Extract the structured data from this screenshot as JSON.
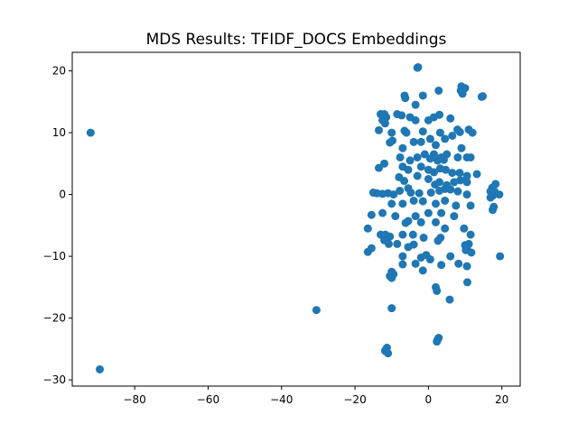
{
  "chart_data": {
    "type": "scatter",
    "title": "MDS Results: TFIDF_DOCS Embeddings",
    "xlabel": "",
    "ylabel": "",
    "xlim": [
      -97,
      25
    ],
    "ylim": [
      -31,
      23
    ],
    "xticks": [
      -80,
      -60,
      -40,
      -20,
      0,
      20
    ],
    "yticks": [
      -30,
      -20,
      -10,
      0,
      10,
      20
    ],
    "xtick_labels": [
      "−80",
      "−60",
      "−40",
      "−20",
      "0",
      "20"
    ],
    "ytick_labels": [
      "−30",
      "−20",
      "−10",
      "0",
      "10",
      "20"
    ],
    "grid": false,
    "marker_color": "#1f77b4",
    "series": [
      {
        "points": [
          [
            -92,
            10
          ],
          [
            -89.5,
            -28.3
          ],
          [
            -30.5,
            -18.7
          ],
          [
            -3,
            20.5
          ],
          [
            -2.8,
            20.6
          ],
          [
            9,
            17.5
          ],
          [
            9.5,
            17
          ],
          [
            8.8,
            16.8
          ],
          [
            9.3,
            16.3
          ],
          [
            10,
            17.2
          ],
          [
            14.5,
            15.8
          ],
          [
            14.8,
            15.9
          ],
          [
            2.8,
            16.8
          ],
          [
            -1.5,
            16
          ],
          [
            -6.5,
            16
          ],
          [
            -6.3,
            15.6
          ],
          [
            -3.5,
            14.5
          ],
          [
            -12,
            13
          ],
          [
            -11.5,
            12.5
          ],
          [
            -12.5,
            12
          ],
          [
            -11.8,
            11.5
          ],
          [
            -12,
            12.3
          ],
          [
            -13,
            13
          ],
          [
            -8.5,
            13
          ],
          [
            -7.3,
            12.8
          ],
          [
            -5,
            12.5
          ],
          [
            -3.5,
            12
          ],
          [
            0,
            12
          ],
          [
            1.5,
            12.5
          ],
          [
            3,
            12.9
          ],
          [
            6,
            12.3
          ],
          [
            -13.5,
            10.4
          ],
          [
            -10,
            10
          ],
          [
            -6.5,
            10.3
          ],
          [
            -6,
            10
          ],
          [
            -1.5,
            10.2
          ],
          [
            3.2,
            10
          ],
          [
            7.9,
            10.5
          ],
          [
            8.6,
            10.1
          ],
          [
            11,
            10.5
          ],
          [
            12,
            10
          ],
          [
            -10.5,
            8.4
          ],
          [
            -9.8,
            8.7
          ],
          [
            -7,
            7.5
          ],
          [
            -4,
            8.5
          ],
          [
            -2,
            8.5
          ],
          [
            0.5,
            9
          ],
          [
            2,
            8
          ],
          [
            4.5,
            9
          ],
          [
            6.5,
            9.5
          ],
          [
            9,
            7.5
          ],
          [
            -7.7,
            6
          ],
          [
            -5,
            5.5
          ],
          [
            -3,
            6
          ],
          [
            -1,
            6.5
          ],
          [
            0.5,
            5.8
          ],
          [
            1.5,
            6.5
          ],
          [
            2.5,
            5.5
          ],
          [
            3.5,
            6
          ],
          [
            4.2,
            5.6
          ],
          [
            5,
            6.5
          ],
          [
            8,
            6
          ],
          [
            10.5,
            6
          ],
          [
            11.5,
            6
          ],
          [
            -12,
            5
          ],
          [
            -7,
            4.5
          ],
          [
            -5.5,
            4
          ],
          [
            -2,
            4.5
          ],
          [
            0,
            4
          ],
          [
            1.5,
            3.6
          ],
          [
            3.2,
            4.2
          ],
          [
            4.7,
            4
          ],
          [
            6.5,
            3.5
          ],
          [
            8.5,
            3.5
          ],
          [
            10.5,
            3
          ],
          [
            13.2,
            3.3
          ],
          [
            -13.5,
            4.3
          ],
          [
            -8,
            2.8
          ],
          [
            -6.6,
            2.2
          ],
          [
            -3,
            3
          ],
          [
            0,
            2.5
          ],
          [
            1.8,
            1.6
          ],
          [
            3,
            2
          ],
          [
            5,
            1.5
          ],
          [
            7,
            2
          ],
          [
            8.7,
            2.3
          ],
          [
            10.5,
            2
          ],
          [
            17.4,
            1.1
          ],
          [
            18.3,
            1.7
          ],
          [
            -15,
            0.3
          ],
          [
            -14,
            0.2
          ],
          [
            -12.5,
            0.1
          ],
          [
            -11,
            0.2
          ],
          [
            -9.5,
            0
          ],
          [
            -7.8,
            0.6
          ],
          [
            -5.5,
            1
          ],
          [
            -4.8,
            0.3
          ],
          [
            -2.5,
            0.2
          ],
          [
            0.7,
            0.3
          ],
          [
            3,
            0.6
          ],
          [
            4.5,
            0.9
          ],
          [
            6,
            0.8
          ],
          [
            8,
            0.5
          ],
          [
            10.5,
            0
          ],
          [
            16.9,
            0.5
          ],
          [
            17.5,
            -0.2
          ],
          [
            16.9,
            -0.5
          ],
          [
            18,
            0.5
          ],
          [
            19.3,
            0
          ],
          [
            -10,
            -1.5
          ],
          [
            -7,
            -1.5
          ],
          [
            -4,
            -1
          ],
          [
            -1.5,
            -1.1
          ],
          [
            2,
            -1.5
          ],
          [
            4.5,
            -1
          ],
          [
            7.5,
            -1.8
          ],
          [
            11.5,
            -1.8
          ],
          [
            17.8,
            -2
          ],
          [
            17.5,
            -2.5
          ],
          [
            -15.5,
            -3.3
          ],
          [
            -12.5,
            -3
          ],
          [
            -9,
            -3.5
          ],
          [
            -5.5,
            -4.3
          ],
          [
            -3.5,
            -3.5
          ],
          [
            0,
            -3
          ],
          [
            3.5,
            -3
          ],
          [
            7,
            -3.5
          ],
          [
            -6.2,
            -4.6
          ],
          [
            -2,
            -4.5
          ],
          [
            2,
            -4.5
          ],
          [
            4.5,
            -5.5
          ],
          [
            9.7,
            -5.5
          ],
          [
            -16.5,
            -5.5
          ],
          [
            -13,
            -6.5
          ],
          [
            -11.7,
            -6.5
          ],
          [
            -11.3,
            -7.2
          ],
          [
            -10.5,
            -6.8
          ],
          [
            -12,
            -7.4
          ],
          [
            -7,
            -6.5
          ],
          [
            -4.2,
            -6.5
          ],
          [
            -1.3,
            -7
          ],
          [
            2.6,
            -7.5
          ],
          [
            3.3,
            -7
          ],
          [
            11.5,
            -6.5
          ],
          [
            -16.5,
            -9.3
          ],
          [
            -15.5,
            -8.7
          ],
          [
            -10.8,
            -8
          ],
          [
            -8.5,
            -8
          ],
          [
            -5.5,
            -8.5
          ],
          [
            -4,
            -8.1
          ],
          [
            10,
            -8.2
          ],
          [
            10.5,
            -8.5
          ],
          [
            10.2,
            -9
          ],
          [
            11,
            -8
          ],
          [
            11.7,
            -9.4
          ],
          [
            -7,
            -10
          ],
          [
            -2,
            -10.2
          ],
          [
            -0.6,
            -9.8
          ],
          [
            0.5,
            -10.5
          ],
          [
            6,
            -10
          ],
          [
            19.5,
            -10
          ],
          [
            -7,
            -11.3
          ],
          [
            -3.5,
            -11.2
          ],
          [
            3.5,
            -11.4
          ],
          [
            8.2,
            -11.2
          ],
          [
            10.5,
            -11.6
          ],
          [
            -10,
            -12.5
          ],
          [
            -10,
            -13.5
          ],
          [
            -9.5,
            -12.9
          ],
          [
            -10.5,
            -13.2
          ],
          [
            -1.5,
            -12.3
          ],
          [
            10.6,
            -14.2
          ],
          [
            2,
            -15
          ],
          [
            2.3,
            -15.6
          ],
          [
            5.8,
            -17
          ],
          [
            -10,
            -18.4
          ],
          [
            2.5,
            -23.5
          ],
          [
            2.8,
            -23.2
          ],
          [
            2.3,
            -23.8
          ],
          [
            -11.5,
            -25
          ],
          [
            -11.8,
            -25.3
          ],
          [
            -11,
            -25.7
          ],
          [
            -11.3,
            -24.8
          ]
        ]
      }
    ]
  }
}
